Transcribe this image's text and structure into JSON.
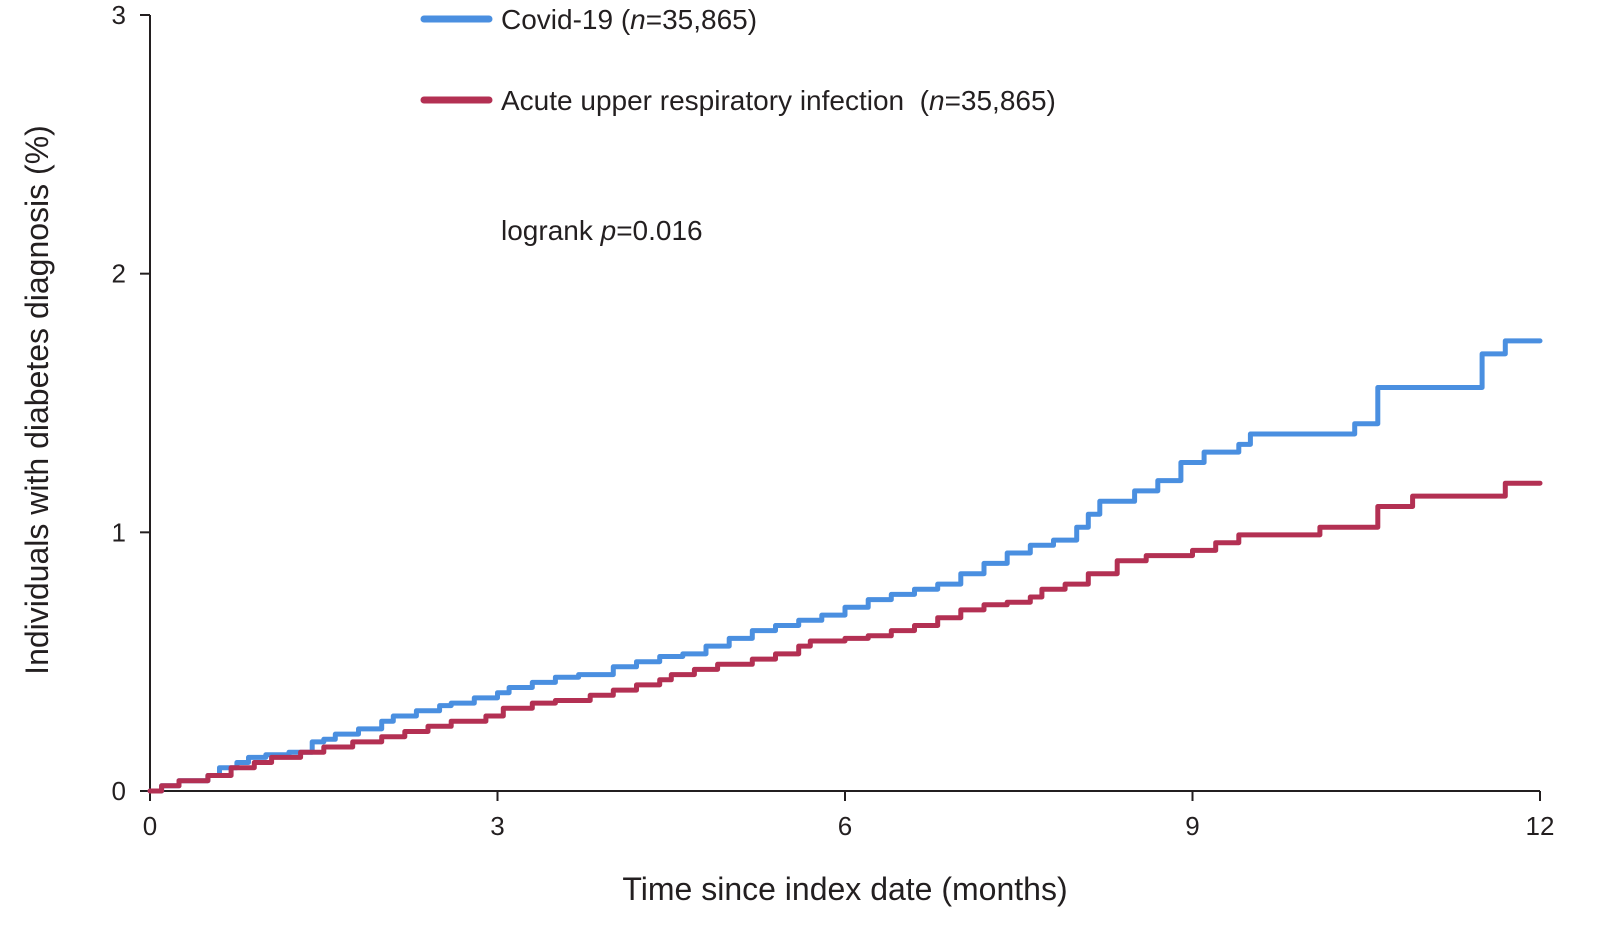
{
  "chart_data": {
    "type": "line",
    "xlabel": "Time since index date (months)",
    "ylabel": "Individuals with diabetes diagnosis (%)",
    "xlim": [
      0,
      12
    ],
    "ylim": [
      0,
      3
    ],
    "x_ticks": [
      "0",
      "3",
      "6",
      "9",
      "12"
    ],
    "y_ticks": [
      "0",
      "1",
      "2",
      "3"
    ],
    "grid": false,
    "legend_position": "top-center",
    "annotation": {
      "prefix": "logrank ",
      "italic": "p",
      "suffix": "=0.016"
    },
    "series": [
      {
        "name": "Covid-19",
        "legend": {
          "name": "Covid-19 (",
          "n_italic": "n",
          "n_value": "=35,865)"
        },
        "color": "#4a8fe0",
        "step": true,
        "points": [
          [
            0,
            0
          ],
          [
            0.1,
            0.02
          ],
          [
            0.25,
            0.04
          ],
          [
            0.5,
            0.06
          ],
          [
            0.6,
            0.09
          ],
          [
            0.75,
            0.11
          ],
          [
            0.85,
            0.13
          ],
          [
            1.0,
            0.14
          ],
          [
            1.2,
            0.15
          ],
          [
            1.4,
            0.19
          ],
          [
            1.5,
            0.2
          ],
          [
            1.6,
            0.22
          ],
          [
            1.8,
            0.24
          ],
          [
            2.0,
            0.27
          ],
          [
            2.1,
            0.29
          ],
          [
            2.3,
            0.31
          ],
          [
            2.5,
            0.33
          ],
          [
            2.6,
            0.34
          ],
          [
            2.8,
            0.36
          ],
          [
            3.0,
            0.38
          ],
          [
            3.1,
            0.4
          ],
          [
            3.3,
            0.42
          ],
          [
            3.5,
            0.44
          ],
          [
            3.7,
            0.45
          ],
          [
            4.0,
            0.48
          ],
          [
            4.2,
            0.5
          ],
          [
            4.4,
            0.52
          ],
          [
            4.6,
            0.53
          ],
          [
            4.8,
            0.56
          ],
          [
            5.0,
            0.59
          ],
          [
            5.2,
            0.62
          ],
          [
            5.4,
            0.64
          ],
          [
            5.6,
            0.66
          ],
          [
            5.8,
            0.68
          ],
          [
            6.0,
            0.71
          ],
          [
            6.2,
            0.74
          ],
          [
            6.4,
            0.76
          ],
          [
            6.6,
            0.78
          ],
          [
            6.8,
            0.8
          ],
          [
            7.0,
            0.84
          ],
          [
            7.2,
            0.88
          ],
          [
            7.4,
            0.92
          ],
          [
            7.6,
            0.95
          ],
          [
            7.8,
            0.97
          ],
          [
            8.0,
            1.02
          ],
          [
            8.1,
            1.07
          ],
          [
            8.2,
            1.12
          ],
          [
            8.5,
            1.16
          ],
          [
            8.7,
            1.2
          ],
          [
            8.9,
            1.27
          ],
          [
            9.1,
            1.31
          ],
          [
            9.4,
            1.34
          ],
          [
            9.5,
            1.38
          ],
          [
            10.4,
            1.42
          ],
          [
            10.6,
            1.56
          ],
          [
            11.4,
            1.56
          ],
          [
            11.5,
            1.69
          ],
          [
            11.7,
            1.74
          ],
          [
            12.0,
            1.74
          ]
        ]
      },
      {
        "name": "Acute upper respiratory infection",
        "legend": {
          "name": "Acute upper respiratory infection  (",
          "n_italic": "n",
          "n_value": "=35,865)"
        },
        "color": "#b33053",
        "step": true,
        "points": [
          [
            0,
            0
          ],
          [
            0.1,
            0.02
          ],
          [
            0.25,
            0.04
          ],
          [
            0.5,
            0.06
          ],
          [
            0.7,
            0.09
          ],
          [
            0.9,
            0.11
          ],
          [
            1.05,
            0.13
          ],
          [
            1.3,
            0.15
          ],
          [
            1.5,
            0.17
          ],
          [
            1.75,
            0.19
          ],
          [
            2.0,
            0.21
          ],
          [
            2.2,
            0.23
          ],
          [
            2.4,
            0.25
          ],
          [
            2.6,
            0.27
          ],
          [
            2.9,
            0.29
          ],
          [
            3.05,
            0.32
          ],
          [
            3.3,
            0.34
          ],
          [
            3.5,
            0.35
          ],
          [
            3.8,
            0.37
          ],
          [
            4.0,
            0.39
          ],
          [
            4.2,
            0.41
          ],
          [
            4.4,
            0.43
          ],
          [
            4.5,
            0.45
          ],
          [
            4.7,
            0.47
          ],
          [
            4.9,
            0.49
          ],
          [
            5.2,
            0.51
          ],
          [
            5.4,
            0.53
          ],
          [
            5.6,
            0.56
          ],
          [
            5.7,
            0.58
          ],
          [
            6.0,
            0.59
          ],
          [
            6.2,
            0.6
          ],
          [
            6.4,
            0.62
          ],
          [
            6.6,
            0.64
          ],
          [
            6.8,
            0.67
          ],
          [
            7.0,
            0.7
          ],
          [
            7.2,
            0.72
          ],
          [
            7.4,
            0.73
          ],
          [
            7.6,
            0.75
          ],
          [
            7.7,
            0.78
          ],
          [
            7.9,
            0.8
          ],
          [
            8.1,
            0.84
          ],
          [
            8.35,
            0.89
          ],
          [
            8.6,
            0.91
          ],
          [
            9.0,
            0.93
          ],
          [
            9.2,
            0.96
          ],
          [
            9.4,
            0.99
          ],
          [
            10.1,
            1.02
          ],
          [
            10.4,
            1.02
          ],
          [
            10.6,
            1.1
          ],
          [
            10.8,
            1.1
          ],
          [
            10.9,
            1.14
          ],
          [
            11.7,
            1.19
          ],
          [
            12.0,
            1.19
          ]
        ]
      }
    ]
  }
}
